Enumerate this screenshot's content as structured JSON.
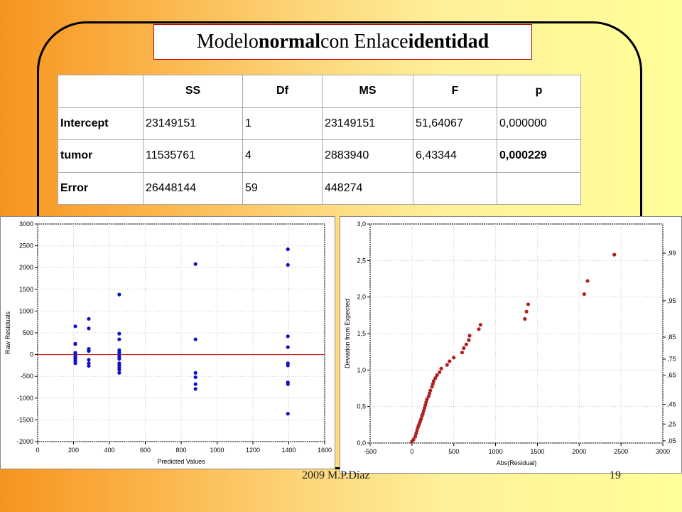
{
  "slide": {
    "title_parts": [
      "Modelo ",
      "normal",
      " con Enlace ",
      "identidad"
    ],
    "footer_left": "2009   M.P.Díaz",
    "page_number": "19",
    "colors": {
      "frame": "#000000",
      "title_border": "#c00000"
    }
  },
  "chart_data": [
    {
      "type": "table",
      "columns": [
        "",
        "SS",
        "Df",
        "MS",
        "F",
        "p"
      ],
      "rows": [
        [
          "Intercept",
          "23149151",
          "1",
          "23149151",
          "51,64067",
          "0,000000"
        ],
        [
          "tumor",
          "11535761",
          "4",
          "2883940",
          "6,43344",
          "0,000229"
        ],
        [
          "Error",
          "26448144",
          "59",
          "448274",
          "",
          ""
        ]
      ]
    },
    {
      "type": "scatter",
      "xlabel": "Predicted Values",
      "ylabel": "Raw Residuals",
      "xlim": [
        0,
        1600
      ],
      "ylim": [
        -2000,
        3000
      ],
      "xticks": [
        0,
        200,
        400,
        600,
        800,
        1000,
        1200,
        1400,
        1600
      ],
      "yticks": [
        -2000,
        -1500,
        -1000,
        -500,
        0,
        500,
        1000,
        1500,
        2000,
        2500,
        3000
      ],
      "grid": true,
      "reference_line": {
        "y": 0,
        "color": "#cc0000"
      },
      "point_color": "#1010c8",
      "groups": [
        {
          "x": 210,
          "y": [
            650,
            250,
            240,
            40,
            0,
            -50,
            -100,
            -150,
            -200
          ]
        },
        {
          "x": 285,
          "y": [
            820,
            600,
            130,
            100,
            80,
            -120,
            -200,
            -260
          ]
        },
        {
          "x": 455,
          "y": [
            1380,
            480,
            350,
            100,
            50,
            0,
            -50,
            -100,
            -200,
            -250,
            -300,
            -350,
            -420
          ]
        },
        {
          "x": 880,
          "y": [
            2080,
            350,
            -420,
            -520,
            -680,
            -790
          ]
        },
        {
          "x": 1395,
          "y": [
            2420,
            2060,
            420,
            170,
            -200,
            -250,
            -640,
            -680,
            -1360
          ]
        }
      ]
    },
    {
      "type": "scatter",
      "xlabel": "Abs(Residual)",
      "ylabel": "Deviation from Expected",
      "xlim": [
        -500,
        3000
      ],
      "ylim": [
        0,
        3.0
      ],
      "xticks": [
        -500,
        0,
        500,
        1000,
        1500,
        2000,
        2500,
        3000
      ],
      "xtick_labels": [
        "-500",
        "0",
        "500",
        "1000",
        "1500",
        "2000",
        "2500",
        "3000"
      ],
      "yticks": [
        0,
        0.5,
        1.0,
        1.5,
        2.0,
        2.5,
        3.0
      ],
      "ytick_labels": [
        "0,0",
        "0,5",
        "1,0",
        "1,5",
        "2,0",
        "2,5",
        "3,0"
      ],
      "right_axis_labels": [
        {
          "y": 2.6,
          "label": ",99"
        },
        {
          "y": 1.95,
          "label": ",95"
        },
        {
          "y": 1.45,
          "label": ",85"
        },
        {
          "y": 1.15,
          "label": ",75"
        },
        {
          "y": 0.93,
          "label": ",65"
        },
        {
          "y": 0.53,
          "label": ",45"
        },
        {
          "y": 0.26,
          "label": ",25"
        },
        {
          "y": 0.03,
          "label": ",05"
        }
      ],
      "grid": true,
      "point_color": "#b02020",
      "points": [
        [
          0,
          0.02
        ],
        [
          20,
          0.05
        ],
        [
          40,
          0.09
        ],
        [
          50,
          0.13
        ],
        [
          60,
          0.17
        ],
        [
          70,
          0.21
        ],
        [
          80,
          0.24
        ],
        [
          90,
          0.27
        ],
        [
          100,
          0.3
        ],
        [
          110,
          0.33
        ],
        [
          120,
          0.37
        ],
        [
          130,
          0.4
        ],
        [
          140,
          0.44
        ],
        [
          150,
          0.48
        ],
        [
          160,
          0.52
        ],
        [
          170,
          0.56
        ],
        [
          180,
          0.6
        ],
        [
          200,
          0.64
        ],
        [
          210,
          0.68
        ],
        [
          220,
          0.72
        ],
        [
          240,
          0.77
        ],
        [
          250,
          0.81
        ],
        [
          260,
          0.85
        ],
        [
          280,
          0.89
        ],
        [
          300,
          0.93
        ],
        [
          330,
          0.97
        ],
        [
          350,
          1.02
        ],
        [
          420,
          1.07
        ],
        [
          450,
          1.12
        ],
        [
          500,
          1.17
        ],
        [
          600,
          1.24
        ],
        [
          620,
          1.3
        ],
        [
          650,
          1.35
        ],
        [
          680,
          1.41
        ],
        [
          690,
          1.47
        ],
        [
          800,
          1.56
        ],
        [
          820,
          1.62
        ],
        [
          1350,
          1.7
        ],
        [
          1370,
          1.8
        ],
        [
          1390,
          1.9
        ],
        [
          2060,
          2.04
        ],
        [
          2100,
          2.22
        ],
        [
          2420,
          2.58
        ]
      ]
    }
  ]
}
